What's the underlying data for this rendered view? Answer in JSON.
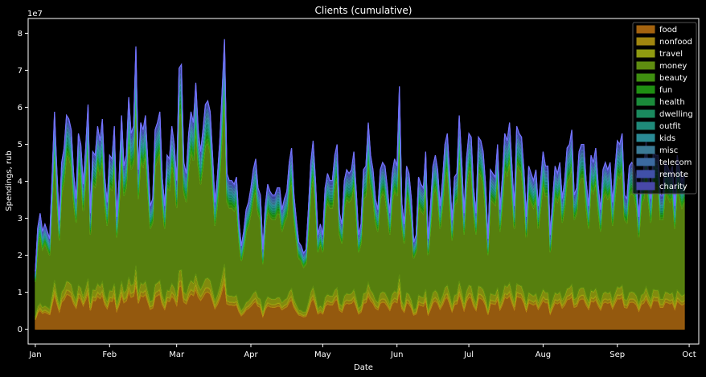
{
  "chart_data": {
    "type": "area",
    "stacked": true,
    "title": "Clients (cumulative)",
    "xlabel": "Date",
    "ylabel": "Spendings, rub",
    "y_scale_label": "1e7",
    "y_ticks": [
      0,
      1,
      2,
      3,
      4,
      5,
      6,
      7,
      8
    ],
    "ylim": [
      -0.4,
      8.4
    ],
    "x_ticks": [
      "Jan",
      "Feb",
      "Mar",
      "Apr",
      "May",
      "Jun",
      "Jul",
      "Aug",
      "Sep",
      "Oct"
    ],
    "x_tick_days": [
      0,
      31,
      59,
      90,
      120,
      151,
      181,
      212,
      243,
      273
    ],
    "xlim": [
      -3,
      277
    ],
    "legend_position": "upper-right",
    "totals_1e7": [
      1.6,
      2.8,
      3.2,
      2.7,
      2.9,
      2.7,
      2.5,
      4.2,
      6.0,
      4.4,
      3.0,
      4.6,
      5.0,
      5.9,
      5.8,
      5.5,
      4.3,
      3.6,
      5.4,
      5.1,
      4.0,
      5.0,
      6.2,
      3.2,
      4.9,
      4.8,
      5.6,
      5.2,
      5.8,
      4.2,
      3.5,
      4.8,
      4.7,
      5.6,
      3.1,
      4.2,
      5.9,
      4.5,
      4.8,
      6.4,
      5.4,
      5.6,
      7.8,
      4.4,
      5.7,
      5.5,
      5.9,
      4.6,
      3.4,
      3.6,
      5.5,
      5.7,
      6.0,
      4.2,
      3.4,
      4.8,
      4.7,
      5.6,
      5.1,
      4.1,
      7.2,
      7.3,
      4.6,
      4.3,
      5.4,
      6.0,
      5.7,
      6.8,
      5.5,
      4.9,
      5.5,
      6.2,
      6.3,
      6.0,
      4.8,
      3.5,
      4.2,
      5.2,
      6.6,
      8.0,
      4.3,
      4.1,
      4.1,
      4.0,
      4.2,
      3.0,
      2.3,
      2.7,
      3.3,
      3.5,
      3.9,
      4.4,
      4.7,
      3.9,
      3.7,
      2.2,
      3.4,
      4.0,
      3.8,
      3.7,
      3.7,
      3.9,
      3.9,
      3.3,
      3.6,
      3.8,
      4.6,
      5.0,
      3.7,
      3.0,
      2.4,
      2.3,
      2.1,
      2.2,
      3.3,
      4.6,
      5.2,
      4.1,
      2.6,
      2.9,
      2.6,
      3.9,
      4.3,
      4.1,
      4.1,
      4.8,
      5.1,
      3.2,
      2.9,
      4.1,
      4.4,
      4.3,
      4.4,
      4.9,
      3.8,
      2.6,
      2.9,
      4.4,
      4.5,
      5.7,
      4.8,
      4.4,
      3.6,
      3.3,
      4.4,
      4.6,
      4.5,
      3.9,
      3.2,
      4.3,
      4.7,
      4.5,
      6.7,
      3.5,
      2.9,
      4.5,
      4.3,
      3.6,
      2.4,
      2.6,
      4.2,
      4.0,
      3.9,
      4.9,
      2.5,
      3.4,
      4.5,
      4.8,
      4.4,
      3.4,
      4.1,
      5.1,
      5.4,
      4.3,
      3.0,
      4.2,
      4.3,
      5.9,
      4.7,
      3.2,
      4.7,
      5.4,
      5.3,
      3.9,
      3.2,
      5.3,
      5.2,
      4.9,
      4.0,
      2.5,
      4.4,
      4.3,
      4.2,
      5.1,
      3.3,
      4.2,
      5.4,
      5.2,
      5.7,
      4.5,
      3.4,
      5.6,
      5.4,
      5.3,
      4.4,
      3.1,
      4.5,
      4.3,
      4.1,
      4.4,
      3.4,
      4.1,
      4.9,
      4.5,
      4.5,
      2.6,
      3.6,
      4.5,
      4.3,
      4.6,
      3.6,
      4.1,
      5.0,
      5.1,
      5.5,
      3.7,
      3.9,
      4.9,
      5.1,
      5.1,
      4.1,
      3.4,
      4.8,
      4.6,
      5.0,
      4.0,
      3.3,
      4.4,
      4.6,
      4.4,
      4.6,
      3.5,
      4.4,
      5.2,
      5.1,
      5.4,
      3.7,
      3.6,
      4.5,
      4.6,
      4.5,
      4.1,
      3.1,
      4.2,
      4.4,
      5.2,
      4.3,
      3.6,
      4.9,
      4.8,
      4.8,
      3.7,
      3.7,
      4.6,
      4.5,
      4.3,
      4.5,
      3.4,
      4.8,
      4.4,
      4.1,
      4.3
    ],
    "series": [
      {
        "name": "food",
        "share": 0.16,
        "color": "#a4630f"
      },
      {
        "name": "nonfood",
        "share": 0.02,
        "color": "#a0860f"
      },
      {
        "name": "travel",
        "share": 0.04,
        "color": "#8f9a10"
      },
      {
        "name": "money",
        "share": 0.58,
        "color": "#5f8d10"
      },
      {
        "name": "beauty",
        "share": 0.02,
        "color": "#3f8f10"
      },
      {
        "name": "fun",
        "share": 0.02,
        "color": "#1f8f12"
      },
      {
        "name": "health",
        "share": 0.015,
        "color": "#1a8a3a"
      },
      {
        "name": "dwelling",
        "share": 0.015,
        "color": "#1a8a5e"
      },
      {
        "name": "outfit",
        "share": 0.02,
        "color": "#1f8a7a"
      },
      {
        "name": "kids",
        "share": 0.02,
        "color": "#2a8a95"
      },
      {
        "name": "misc",
        "share": 0.02,
        "color": "#3b7a95"
      },
      {
        "name": "telecom",
        "share": 0.02,
        "color": "#3b6aa0"
      },
      {
        "name": "remote",
        "share": 0.02,
        "color": "#4050a8"
      },
      {
        "name": "charity",
        "share": 0.01,
        "color": "#4848a8"
      }
    ]
  }
}
